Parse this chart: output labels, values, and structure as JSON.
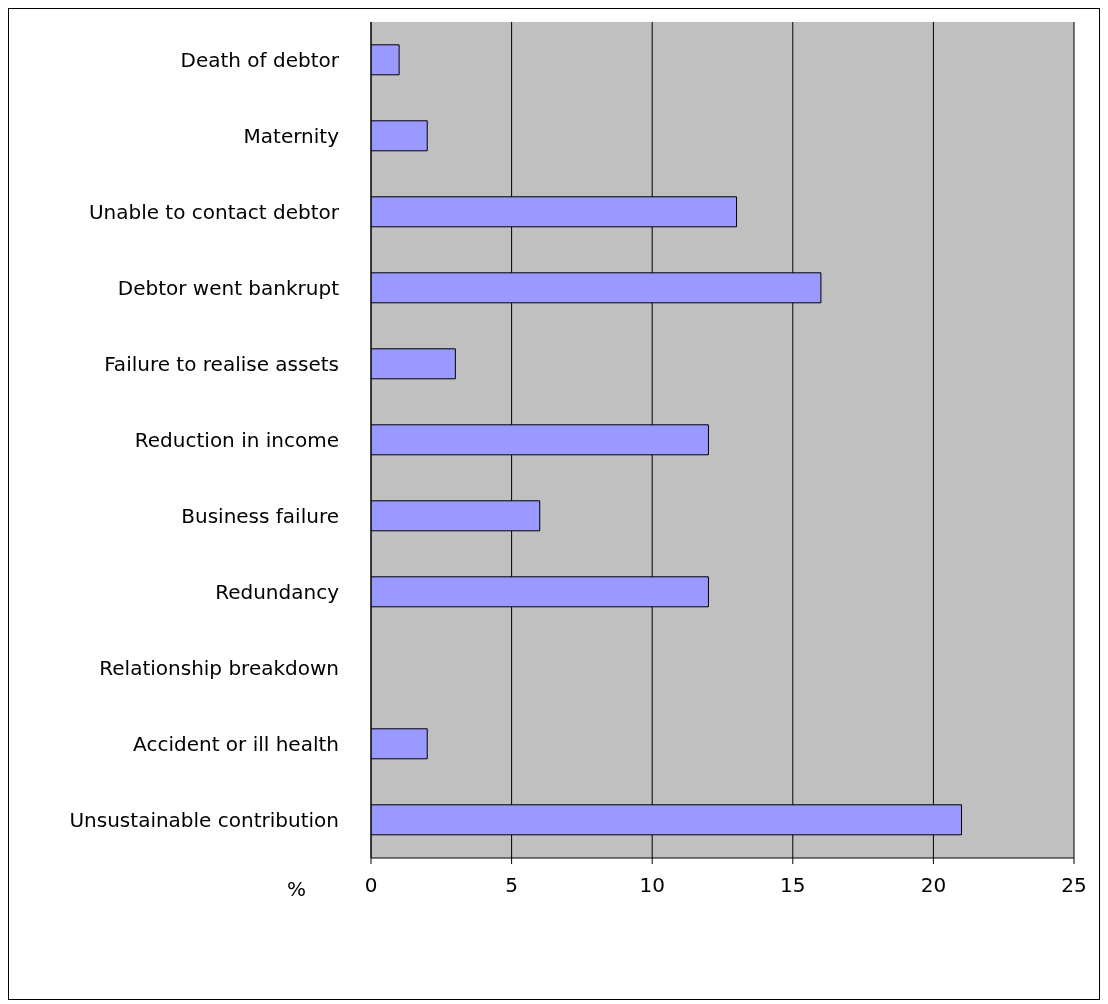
{
  "chart_data": {
    "type": "bar",
    "orientation": "horizontal",
    "xlabel": "%",
    "categories": [
      "Death  of debtor",
      "Maternity",
      "Unable to contact debtor",
      "Debtor went bankrupt",
      "Failure to realise assets",
      "Reduction in income",
      "Business failure",
      "Redundancy",
      "Relationship breakdown",
      "Accident or ill health",
      "Unsustainable contribution"
    ],
    "values": [
      1,
      2,
      13,
      16,
      3,
      12,
      6,
      12,
      0,
      2,
      21
    ],
    "color": "#9999ff",
    "xlim": [
      0,
      25
    ],
    "xticks": [
      0,
      5,
      10,
      15,
      20,
      25
    ],
    "grid": "x"
  }
}
